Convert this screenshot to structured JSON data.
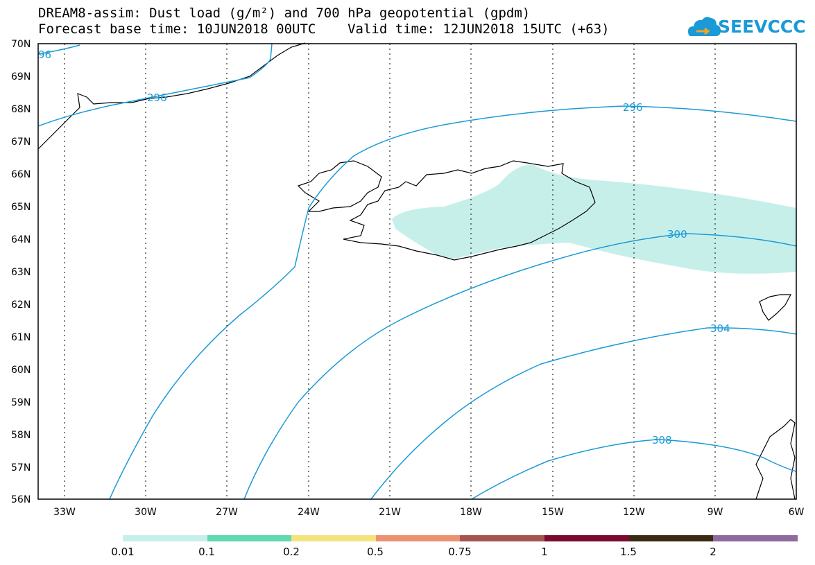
{
  "title": {
    "line1": "DREAM8-assim: Dust load (g/m²) and 700 hPa geopotential (gpdm)",
    "line2": "Forecast base time: 10JUN2018 00UTC    Valid time: 12JUN2018 15UTC (+63)"
  },
  "logo": {
    "text": "SEEVCCC",
    "icon": "cloud-icon",
    "color": "#1a9ad6"
  },
  "map": {
    "lat_labels": [
      "70N",
      "69N",
      "68N",
      "67N",
      "66N",
      "65N",
      "64N",
      "63N",
      "62N",
      "61N",
      "60N",
      "59N",
      "58N",
      "57N",
      "56N"
    ],
    "lon_labels": [
      "33W",
      "30W",
      "27W",
      "24W",
      "21W",
      "18W",
      "15W",
      "12W",
      "9W",
      "6W"
    ],
    "contour_color": "#1a9ad6",
    "dust_color": "#c7efea",
    "contours": [
      {
        "value": "296",
        "label_upper_left": "96",
        "label_mid": "296"
      },
      {
        "value": "296"
      },
      {
        "value": "300"
      },
      {
        "value": "304"
      },
      {
        "value": "308"
      }
    ]
  },
  "colorbar": {
    "labels": [
      "0.01",
      "0.1",
      "0.2",
      "0.5",
      "0.75",
      "1",
      "1.5",
      "2"
    ],
    "colors": [
      "#c7efea",
      "#5fd9b0",
      "#f4e27c",
      "#eb9270",
      "#a4554e",
      "#7a0a2e",
      "#3a2a14",
      "#8e6a9e"
    ]
  }
}
